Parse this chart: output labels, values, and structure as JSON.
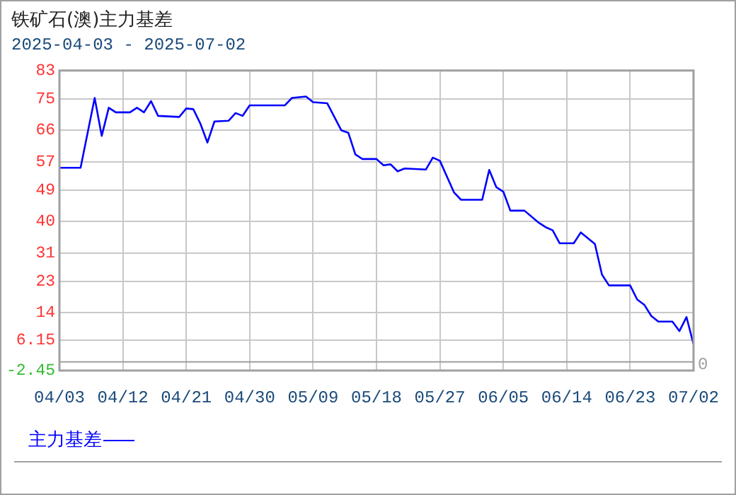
{
  "chart_data": {
    "type": "line",
    "title": "铁矿石(澳)主力基差",
    "subtitle": "2025-04-03 - 2025-07-02",
    "x": [
      "2025-04-03",
      "2025-04-06",
      "2025-04-08",
      "2025-04-09",
      "2025-04-10",
      "2025-04-11",
      "2025-04-13",
      "2025-04-14",
      "2025-04-15",
      "2025-04-16",
      "2025-04-17",
      "2025-04-20",
      "2025-04-21",
      "2025-04-22",
      "2025-04-23",
      "2025-04-24",
      "2025-04-25",
      "2025-04-27",
      "2025-04-28",
      "2025-04-29",
      "2025-04-30",
      "2025-05-05",
      "2025-05-06",
      "2025-05-08",
      "2025-05-09",
      "2025-05-11",
      "2025-05-13",
      "2025-05-14",
      "2025-05-15",
      "2025-05-16",
      "2025-05-18",
      "2025-05-19",
      "2025-05-20",
      "2025-05-21",
      "2025-05-22",
      "2025-05-25",
      "2025-05-26",
      "2025-05-27",
      "2025-05-29",
      "2025-05-30",
      "2025-06-02",
      "2025-06-03",
      "2025-06-04",
      "2025-06-05",
      "2025-06-06",
      "2025-06-08",
      "2025-06-10",
      "2025-06-11",
      "2025-06-12",
      "2025-06-13",
      "2025-06-15",
      "2025-06-16",
      "2025-06-18",
      "2025-06-19",
      "2025-06-20",
      "2025-06-23",
      "2025-06-24",
      "2025-06-25",
      "2025-06-26",
      "2025-06-27",
      "2025-06-29",
      "2025-06-30",
      "2025-07-01",
      "2025-07-02"
    ],
    "series": [
      {
        "name": "主力基差",
        "color": "#0000ff",
        "values": [
          55.3,
          55.3,
          75.2,
          64.4,
          72.4,
          71.1,
          71.1,
          72.4,
          71.1,
          74.3,
          70.1,
          69.8,
          72.2,
          72,
          67.9,
          62.5,
          68.5,
          68.7,
          70.9,
          70.1,
          73.1,
          73.1,
          75.2,
          75.6,
          74,
          73.7,
          66,
          65.3,
          59.1,
          57.8,
          57.8,
          56,
          56.3,
          54.3,
          55.1,
          54.8,
          58.2,
          57.3,
          48.3,
          46.2,
          46.2,
          54.7,
          49.8,
          48.5,
          43.1,
          43.1,
          39.7,
          38.4,
          37.5,
          33.8,
          33.8,
          36.9,
          33.6,
          24.9,
          21.8,
          21.8,
          17.8,
          16.3,
          13.1,
          11.5,
          11.5,
          8.8,
          12.8,
          5
        ]
      }
    ],
    "xlim": [
      "2025-04-03",
      "2025-07-02"
    ],
    "xticks": [
      {
        "value": "2025-04-03",
        "label": "04/03"
      },
      {
        "value": "2025-04-12",
        "label": "04/12"
      },
      {
        "value": "2025-04-21",
        "label": "04/21"
      },
      {
        "value": "2025-04-30",
        "label": "04/30"
      },
      {
        "value": "2025-05-09",
        "label": "05/09"
      },
      {
        "value": "2025-05-18",
        "label": "05/18"
      },
      {
        "value": "2025-05-27",
        "label": "05/27"
      },
      {
        "value": "2025-06-05",
        "label": "06/05"
      },
      {
        "value": "2025-06-14",
        "label": "06/14"
      },
      {
        "value": "2025-06-23",
        "label": "06/23"
      },
      {
        "value": "2025-07-02",
        "label": "07/02"
      }
    ],
    "ylim": [
      -2.45,
      83
    ],
    "yticks": [
      -2.45,
      6.15,
      14,
      23,
      31,
      40,
      49,
      57,
      66,
      75,
      83
    ],
    "ref_lines": [
      {
        "axis": "y",
        "value": 0,
        "label": "0",
        "color": "#a0a0a0"
      }
    ],
    "grid": true,
    "legend": "bottom",
    "marker": "none",
    "line_style": "solid"
  }
}
